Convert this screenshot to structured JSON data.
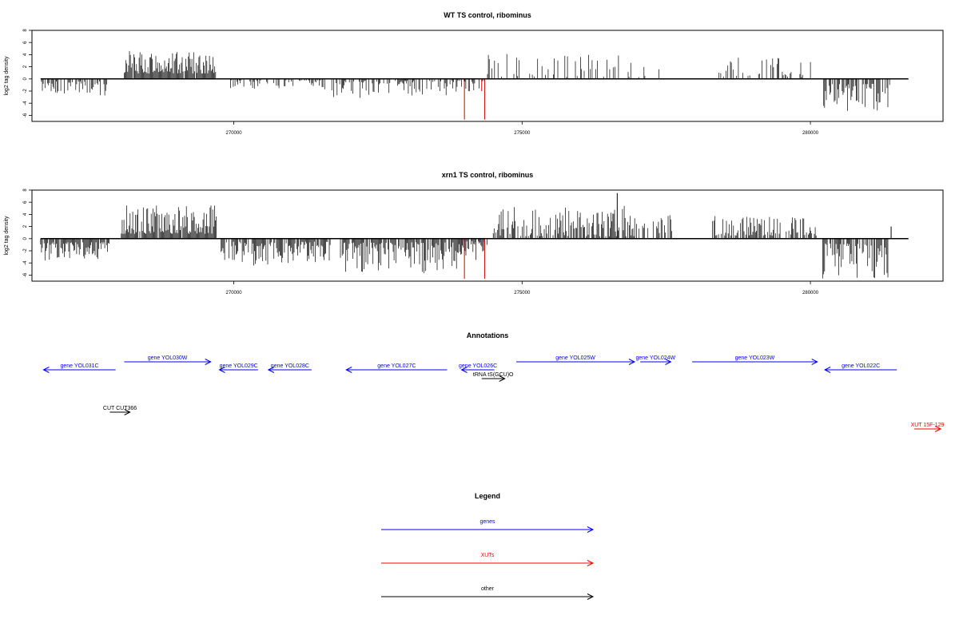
{
  "chart_data": [
    {
      "type": "bar",
      "title": "WT TS control, ribominus",
      "ylabel": "log2 tag density",
      "xlim": [
        266500,
        282300
      ],
      "ylim": [
        -7,
        8
      ],
      "y_ticks": [
        "8",
        "6",
        "4",
        "2",
        "0",
        "-2",
        "-4",
        "-6"
      ],
      "x_ticks": [
        "270000",
        "275000",
        "280000"
      ],
      "x_tick_values": [
        270000,
        275000,
        280000
      ],
      "segments": [
        {
          "from": 266650,
          "to": 267850,
          "sign": -1,
          "min": 0.4,
          "max": 2.8,
          "density": 0.6,
          "seed": 11
        },
        {
          "from": 268100,
          "to": 269700,
          "sign": 1,
          "min": 0.9,
          "max": 4.6,
          "density": 0.95,
          "seed": 12
        },
        {
          "from": 269900,
          "to": 271600,
          "sign": -1,
          "min": 0.2,
          "max": 1.8,
          "density": 0.4,
          "seed": 13
        },
        {
          "from": 271700,
          "to": 273700,
          "sign": -1,
          "min": 0.3,
          "max": 3.2,
          "density": 0.6,
          "seed": 14
        },
        {
          "from": 273750,
          "to": 274350,
          "sign": -1,
          "min": 0.3,
          "max": 2.2,
          "density": 0.5,
          "seed": 15
        },
        {
          "from": 274400,
          "to": 277400,
          "sign": 1,
          "min": 0.3,
          "max": 4.2,
          "density": 0.25,
          "seed": 16
        },
        {
          "from": 278400,
          "to": 280100,
          "sign": 1,
          "min": 0.3,
          "max": 3.5,
          "density": 0.28,
          "seed": 17
        },
        {
          "from": 280200,
          "to": 281400,
          "sign": -1,
          "min": 0.8,
          "max": 5.5,
          "density": 0.65,
          "seed": 18
        }
      ],
      "highlights": [
        {
          "x": 274000,
          "value": -6.7,
          "color": "#cc0000"
        },
        {
          "x": 274350,
          "value": -6.7,
          "color": "#cc0000"
        },
        {
          "x": 274300,
          "value": -2.0,
          "color": "#cc0000"
        }
      ]
    },
    {
      "type": "bar",
      "title": "xrn1 TS control, ribominus",
      "ylabel": "log2 tag density",
      "xlim": [
        266500,
        282300
      ],
      "ylim": [
        -7,
        8
      ],
      "y_ticks": [
        "8",
        "6",
        "4",
        "2",
        "0",
        "-2",
        "-4",
        "-6"
      ],
      "x_ticks": [
        "270000",
        "275000",
        "280000"
      ],
      "x_tick_values": [
        270000,
        275000,
        280000
      ],
      "segments": [
        {
          "from": 266650,
          "to": 267850,
          "sign": -1,
          "min": 0.6,
          "max": 3.6,
          "density": 0.9,
          "seed": 21
        },
        {
          "from": 268050,
          "to": 269700,
          "sign": 1,
          "min": 0.8,
          "max": 5.5,
          "density": 0.95,
          "seed": 22
        },
        {
          "from": 269750,
          "to": 271700,
          "sign": -1,
          "min": 0.5,
          "max": 4.5,
          "density": 0.75,
          "seed": 23
        },
        {
          "from": 271850,
          "to": 273950,
          "sign": -1,
          "min": 0.6,
          "max": 5.8,
          "density": 0.85,
          "seed": 24
        },
        {
          "from": 273950,
          "to": 274400,
          "sign": -1,
          "min": 0.4,
          "max": 2.8,
          "density": 0.8,
          "seed": 25
        },
        {
          "from": 274500,
          "to": 276800,
          "sign": 1,
          "min": 0.4,
          "max": 5.5,
          "density": 0.65,
          "seed": 26
        },
        {
          "from": 276800,
          "to": 277600,
          "sign": 1,
          "min": 0.4,
          "max": 4.0,
          "density": 0.5,
          "seed": 27
        },
        {
          "from": 278300,
          "to": 280100,
          "sign": 1,
          "min": 0.5,
          "max": 3.8,
          "density": 0.6,
          "seed": 28
        },
        {
          "from": 280200,
          "to": 281350,
          "sign": -1,
          "min": 0.8,
          "max": 6.8,
          "density": 0.8,
          "seed": 29
        }
      ],
      "highlights": [
        {
          "x": 274000,
          "value": -6.6,
          "color": "#cc0000"
        },
        {
          "x": 274350,
          "value": -6.6,
          "color": "#cc0000"
        },
        {
          "x": 273950,
          "value": -2.5,
          "color": "#cc0000"
        },
        {
          "x": 274200,
          "value": -3.5,
          "color": "#cc0000"
        },
        {
          "x": 276650,
          "value": 7.5,
          "color": "#000000"
        },
        {
          "x": 281400,
          "value": 2.0,
          "color": "#000000"
        }
      ]
    }
  ],
  "annotations": {
    "title": "Annotations",
    "features": [
      {
        "label": "gene YOL031C",
        "start": 266700,
        "end": 267950,
        "strand": "-",
        "type": "genes",
        "row": 1
      },
      {
        "label": "gene YOL030W",
        "start": 268100,
        "end": 269600,
        "strand": "+",
        "type": "genes",
        "row": 0
      },
      {
        "label": "gene YOL029C",
        "start": 269750,
        "end": 270420,
        "strand": "-",
        "type": "genes",
        "row": 1
      },
      {
        "label": "gene YOL028C",
        "start": 270600,
        "end": 271350,
        "strand": "-",
        "type": "genes",
        "row": 1
      },
      {
        "label": "gene YOL027C",
        "start": 271950,
        "end": 273700,
        "strand": "-",
        "type": "genes",
        "row": 1
      },
      {
        "label": "gene YOL026C",
        "start": 273950,
        "end": 274520,
        "strand": "-",
        "type": "genes",
        "row": 1
      },
      {
        "label": "tRNA tS(GCU)O",
        "start": 274300,
        "end": 274700,
        "strand": "+",
        "type": "other",
        "row": 2
      },
      {
        "label": "gene YOL025W",
        "start": 274900,
        "end": 276950,
        "strand": "+",
        "type": "genes",
        "row": 0
      },
      {
        "label": "gene YOL024W",
        "start": 277050,
        "end": 277580,
        "strand": "+",
        "type": "genes",
        "row": 0
      },
      {
        "label": "gene YOL023W",
        "start": 277950,
        "end": 280120,
        "strand": "+",
        "type": "genes",
        "row": 0
      },
      {
        "label": "gene YOL022C",
        "start": 280250,
        "end": 281500,
        "strand": "-",
        "type": "genes",
        "row": 1
      },
      {
        "label": "CUT CUT366",
        "start": 267850,
        "end": 268200,
        "strand": "+",
        "type": "other",
        "row": 5
      },
      {
        "label": "XUT 15F-129",
        "start": 281800,
        "end": 282260,
        "strand": "+",
        "type": "XUTs",
        "row": 7
      }
    ]
  },
  "legend": {
    "title": "Legend",
    "items": [
      {
        "label": "genes",
        "color": "#0000ff"
      },
      {
        "label": "XUTs",
        "color": "#ff0000"
      },
      {
        "label": "other",
        "color": "#000000"
      }
    ]
  },
  "colors": {
    "genes": "#0000ff",
    "XUTs": "#ff0000",
    "other": "#000000"
  }
}
